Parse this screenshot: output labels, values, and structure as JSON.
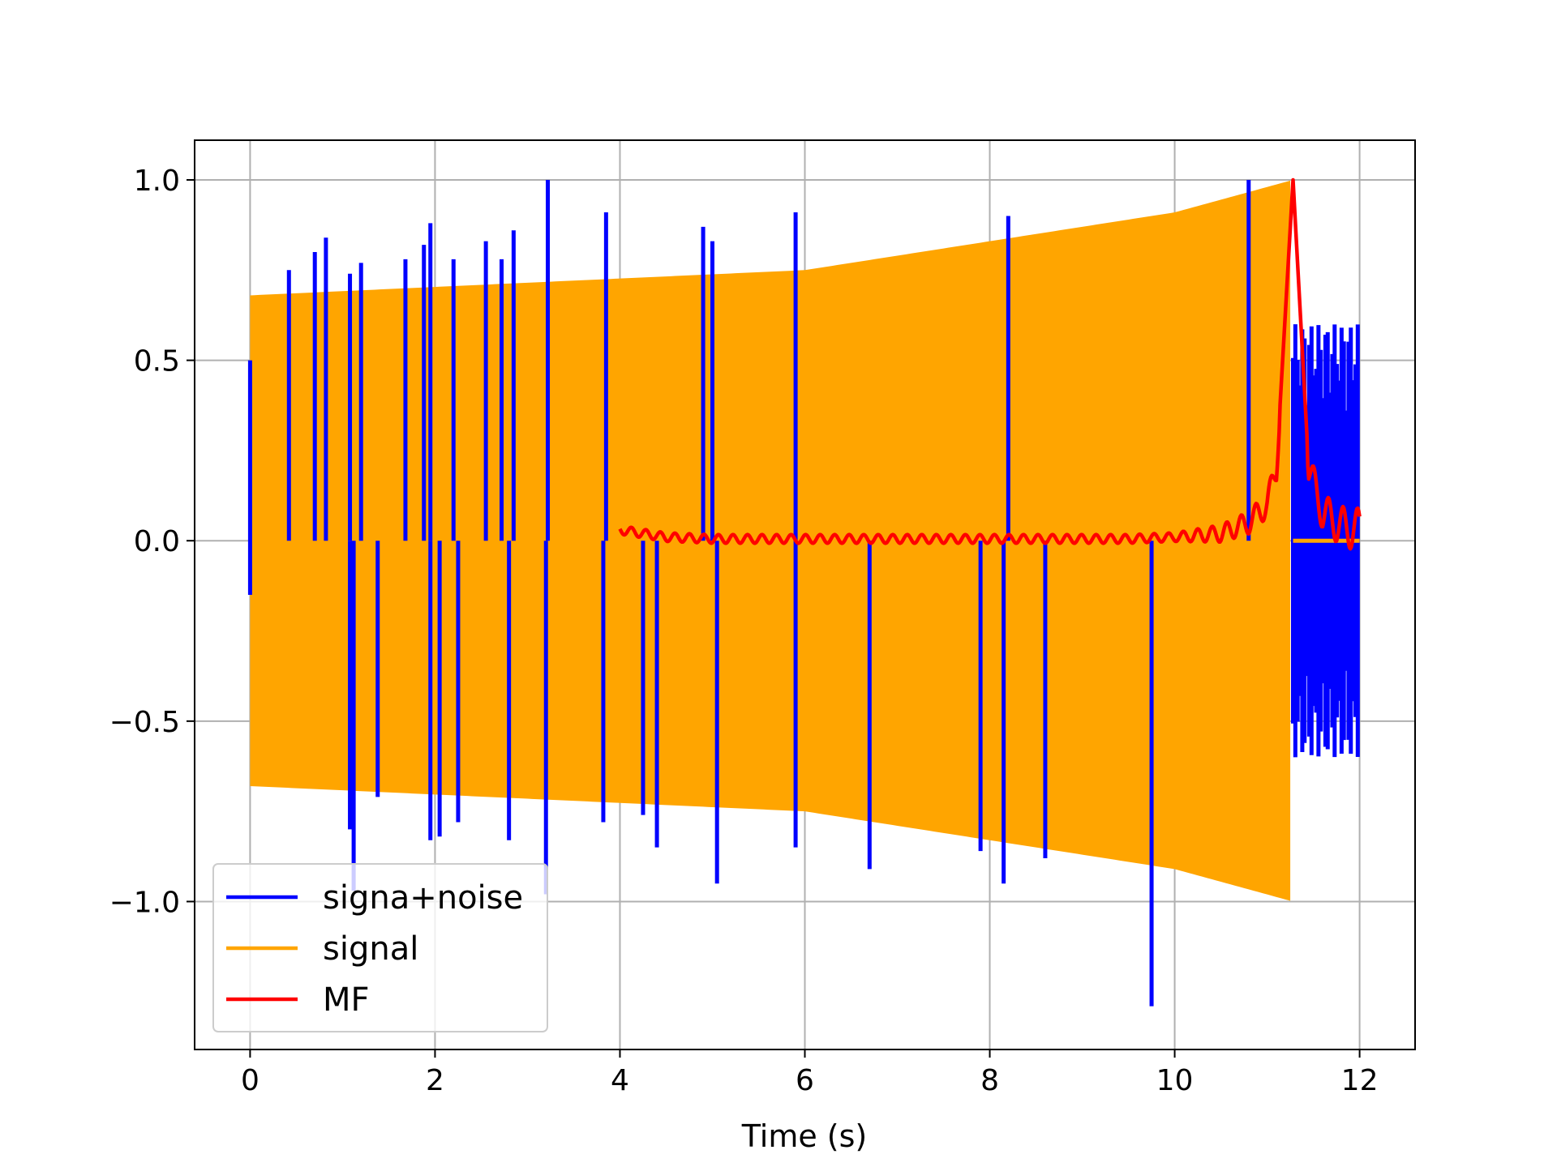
{
  "chart_data": {
    "type": "line",
    "title": "",
    "xlabel": "Time (s)",
    "ylabel": "",
    "xlim": [
      -0.6,
      12.6
    ],
    "ylim": [
      -1.41,
      1.11
    ],
    "x_ticks": [
      0,
      2,
      4,
      6,
      8,
      10,
      12
    ],
    "x_tick_labels": [
      "0",
      "2",
      "4",
      "6",
      "8",
      "10",
      "12"
    ],
    "y_ticks": [
      -1.0,
      -0.5,
      0.0,
      0.5,
      1.0
    ],
    "y_tick_labels": [
      "−1.0",
      "−0.5",
      "0.0",
      "0.5",
      "1.0"
    ],
    "grid": true,
    "legend_position": "lower-left",
    "series": [
      {
        "name": "signa+noise",
        "color": "#0000ff",
        "description_values": {
          "x_range": [
            0,
            12
          ],
          "envelope_start": 0.68,
          "envelope_peak": 1.0,
          "peak_x": 11.28,
          "post_signal_noise_amplitude": 0.6
        },
        "spikes": [
          {
            "x": 0.42,
            "y": 0.75
          },
          {
            "x": 0.7,
            "y": 0.8
          },
          {
            "x": 0.82,
            "y": 0.84
          },
          {
            "x": 1.08,
            "y": 0.74
          },
          {
            "x": 1.2,
            "y": 0.77
          },
          {
            "x": 1.68,
            "y": 0.78
          },
          {
            "x": 1.88,
            "y": 0.82
          },
          {
            "x": 1.95,
            "y": 0.88
          },
          {
            "x": 2.2,
            "y": 0.78
          },
          {
            "x": 2.55,
            "y": 0.83
          },
          {
            "x": 2.72,
            "y": 0.78
          },
          {
            "x": 2.85,
            "y": 0.86
          },
          {
            "x": 3.22,
            "y": 1.0
          },
          {
            "x": 3.85,
            "y": 0.91
          },
          {
            "x": 4.9,
            "y": 0.87
          },
          {
            "x": 5.0,
            "y": 0.83
          },
          {
            "x": 5.9,
            "y": 0.91
          },
          {
            "x": 8.2,
            "y": 0.9
          },
          {
            "x": 10.8,
            "y": 1.0
          },
          {
            "x": 1.08,
            "y": -0.8
          },
          {
            "x": 1.12,
            "y": -0.97
          },
          {
            "x": 1.38,
            "y": -0.71
          },
          {
            "x": 1.95,
            "y": -0.83
          },
          {
            "x": 2.05,
            "y": -0.82
          },
          {
            "x": 2.25,
            "y": -0.78
          },
          {
            "x": 2.8,
            "y": -0.83
          },
          {
            "x": 3.2,
            "y": -0.98
          },
          {
            "x": 3.82,
            "y": -0.78
          },
          {
            "x": 4.25,
            "y": -0.76
          },
          {
            "x": 4.4,
            "y": -0.85
          },
          {
            "x": 5.05,
            "y": -0.95
          },
          {
            "x": 5.9,
            "y": -0.85
          },
          {
            "x": 6.7,
            "y": -0.91
          },
          {
            "x": 7.9,
            "y": -0.86
          },
          {
            "x": 8.15,
            "y": -0.95
          },
          {
            "x": 8.6,
            "y": -0.88
          },
          {
            "x": 9.75,
            "y": -1.29
          }
        ]
      },
      {
        "name": "signal",
        "color": "#ffa500",
        "description_values": {
          "x_range": [
            0,
            11.28
          ],
          "envelope_start": 0.68,
          "envelope_mid": 0.75,
          "envelope_at_10": 0.91,
          "envelope_peak": 1.0,
          "flat_after_end": 0.0
        }
      },
      {
        "name": "MF",
        "color": "#ff0000",
        "x_range": [
          4.0,
          12.0
        ],
        "points": [
          [
            4.0,
            0.03
          ],
          [
            4.5,
            0.01
          ],
          [
            5.0,
            0.005
          ],
          [
            5.5,
            0.005
          ],
          [
            6.0,
            0.005
          ],
          [
            6.5,
            0.005
          ],
          [
            7.0,
            0.005
          ],
          [
            7.5,
            0.005
          ],
          [
            8.0,
            0.005
          ],
          [
            8.5,
            0.005
          ],
          [
            9.0,
            0.005
          ],
          [
            9.5,
            0.005
          ],
          [
            10.0,
            0.01
          ],
          [
            10.5,
            0.02
          ],
          [
            10.8,
            0.05
          ],
          [
            11.0,
            0.1
          ],
          [
            11.1,
            0.2
          ],
          [
            11.28,
            1.0
          ],
          [
            11.45,
            0.2
          ],
          [
            11.6,
            0.08
          ],
          [
            11.8,
            0.04
          ],
          [
            12.0,
            0.03
          ]
        ]
      }
    ]
  }
}
